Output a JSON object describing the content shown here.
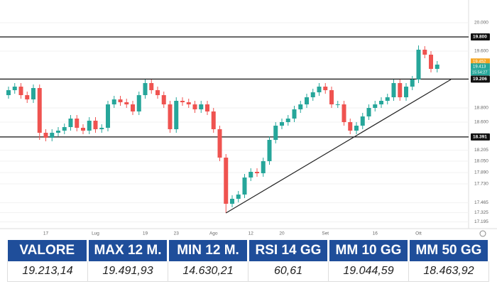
{
  "chart_data": {
    "type": "candlestick",
    "categories": [
      null,
      null,
      null,
      null,
      null,
      null,
      "17",
      null,
      null,
      null,
      null,
      null,
      null,
      null,
      "Lug",
      null,
      null,
      null,
      null,
      null,
      null,
      null,
      "19",
      null,
      null,
      null,
      null,
      "23",
      null,
      null,
      null,
      null,
      null,
      "Ago",
      null,
      null,
      null,
      null,
      null,
      "12",
      null,
      null,
      null,
      null,
      "20",
      null,
      null,
      null,
      null,
      null,
      null,
      "Set",
      null,
      null,
      null,
      null,
      null,
      null,
      null,
      "16",
      null,
      null,
      null,
      null,
      null,
      null,
      "Ott",
      null,
      null,
      null
    ],
    "open": [
      18980,
      19050,
      19100,
      18980,
      18920,
      19080,
      18450,
      18380,
      18450,
      18480,
      18530,
      18650,
      18520,
      18480,
      18620,
      18500,
      18520,
      18850,
      18920,
      18880,
      18850,
      18750,
      18980,
      19150,
      19050,
      18980,
      18850,
      18500,
      18900,
      18880,
      18850,
      18780,
      18850,
      18750,
      18500,
      18100,
      17450,
      17520,
      17580,
      17820,
      17900,
      17880,
      18050,
      18350,
      18550,
      18600,
      18650,
      18780,
      18850,
      18950,
      19020,
      19100,
      19050,
      18850,
      18850,
      18600,
      18480,
      18550,
      18680,
      18800,
      18850,
      18900,
      18950,
      19150,
      18950,
      19100,
      19200,
      19620,
      19550,
      19350
    ],
    "high": [
      19100,
      19150,
      19150,
      19030,
      19130,
      19130,
      18500,
      18500,
      18530,
      18580,
      18700,
      18700,
      18570,
      18670,
      18670,
      18570,
      18900,
      18970,
      18970,
      18930,
      18900,
      19030,
      19200,
      19200,
      19100,
      19030,
      18900,
      18950,
      18950,
      18930,
      18900,
      18900,
      18900,
      18800,
      18550,
      18150,
      17570,
      17630,
      17870,
      17950,
      17950,
      18100,
      18400,
      18600,
      18650,
      18700,
      18830,
      18900,
      19000,
      19070,
      19150,
      19150,
      19100,
      18900,
      18900,
      18650,
      18600,
      18730,
      18850,
      18900,
      18950,
      19000,
      19200,
      19200,
      19150,
      19250,
      19680,
      19670,
      19600,
      19460
    ],
    "low": [
      18930,
      19000,
      18930,
      18870,
      18870,
      18350,
      18330,
      18330,
      18400,
      18430,
      18480,
      18470,
      18430,
      18430,
      18450,
      18450,
      18470,
      18800,
      18830,
      18800,
      18700,
      18700,
      18930,
      19000,
      18930,
      18800,
      18450,
      18450,
      18830,
      18800,
      18730,
      18730,
      18700,
      18450,
      18050,
      17320,
      17400,
      17470,
      17530,
      17770,
      17830,
      17830,
      18000,
      18300,
      18500,
      18550,
      18600,
      18730,
      18800,
      18900,
      18970,
      19000,
      18800,
      18800,
      18550,
      18430,
      18430,
      18500,
      18630,
      18750,
      18800,
      18850,
      18900,
      18900,
      18900,
      19050,
      19150,
      19500,
      19300,
      19300
    ],
    "close": [
      19050,
      19100,
      18980,
      18920,
      19080,
      18450,
      18380,
      18450,
      18480,
      18530,
      18650,
      18520,
      18480,
      18620,
      18500,
      18520,
      18850,
      18920,
      18880,
      18850,
      18750,
      18980,
      19150,
      19050,
      18980,
      18850,
      18500,
      18900,
      18880,
      18850,
      18780,
      18850,
      18750,
      18500,
      18100,
      17450,
      17520,
      17580,
      17820,
      17900,
      17880,
      18050,
      18350,
      18550,
      18600,
      18650,
      18780,
      18850,
      18950,
      19020,
      19100,
      19050,
      18850,
      18850,
      18600,
      18480,
      18550,
      18680,
      18800,
      18850,
      18900,
      18950,
      19150,
      18950,
      19100,
      19200,
      19620,
      19550,
      19350,
      19410
    ],
    "up_color": "#26a69a",
    "down_color": "#ef5350",
    "ylim": [
      17100,
      20320
    ],
    "yticks": [
      {
        "value": 20000,
        "label": "20.000"
      },
      {
        "value": 19600,
        "label": "19.600"
      },
      {
        "value": 18800,
        "label": "18.800"
      },
      {
        "value": 18600,
        "label": "18.600"
      },
      {
        "value": 18205,
        "label": "18.205"
      },
      {
        "value": 18050,
        "label": "18.050"
      },
      {
        "value": 17890,
        "label": "17.890"
      },
      {
        "value": 17730,
        "label": "17.730"
      },
      {
        "value": 17465,
        "label": "17.465"
      },
      {
        "value": 17325,
        "label": "17.325"
      },
      {
        "value": 17195,
        "label": "17.195"
      }
    ],
    "grid": true,
    "levels": [
      {
        "value": 19800,
        "label": "19.800"
      },
      {
        "value": 19206,
        "label": "19.206"
      },
      {
        "value": 18391,
        "label": "18.391"
      }
    ],
    "trend_line": {
      "x": [
        35,
        71.2
      ],
      "y": [
        17320,
        19200
      ]
    },
    "price_tags": [
      {
        "value": 19452,
        "label": "19.452",
        "color": "#f5a623"
      },
      {
        "value": 19413,
        "label": "19.413",
        "color": "#26a69a"
      }
    ],
    "time_label": "15:54:27"
  },
  "table": {
    "headers": [
      "VALORE",
      "MAX 12 M.",
      "MIN 12 M.",
      "RSI 14 GG",
      "MM 10 GG",
      "MM 50 GG"
    ],
    "values": [
      "19.213,14",
      "19.491,93",
      "14.630,21",
      "60,61",
      "19.044,59",
      "18.463,92"
    ]
  }
}
